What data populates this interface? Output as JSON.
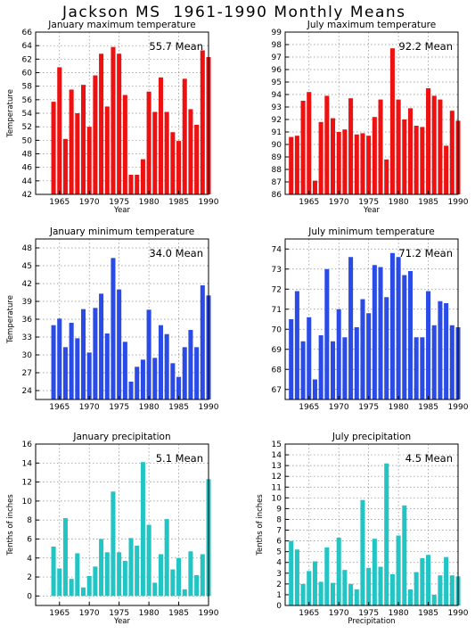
{
  "page": {
    "title": "Jackson MS  1961-1990 Monthly Means"
  },
  "chart_data": [
    {
      "type": "bar",
      "title": "January maximum temperature",
      "annotation": "55.7 Mean",
      "xlabel": "Year",
      "ylabel": "Temperature",
      "color": "#ee1111",
      "xlim": [
        1961,
        1990
      ],
      "ylim": [
        42,
        66
      ],
      "yticks": [
        42,
        44,
        46,
        48,
        50,
        52,
        54,
        56,
        58,
        60,
        62,
        64,
        66
      ],
      "xticks": [
        1965,
        1970,
        1975,
        1980,
        1985,
        1990
      ],
      "grid": true,
      "x": [
        1964,
        1965,
        1966,
        1967,
        1968,
        1969,
        1970,
        1971,
        1972,
        1973,
        1974,
        1975,
        1976,
        1977,
        1978,
        1979,
        1980,
        1981,
        1982,
        1983,
        1984,
        1985,
        1986,
        1987,
        1988,
        1989,
        1990
      ],
      "values": [
        55.7,
        60.8,
        50.2,
        57.5,
        54.0,
        58.2,
        52.0,
        59.6,
        62.8,
        55.0,
        63.8,
        62.8,
        56.7,
        44.9,
        44.9,
        47.2,
        57.2,
        54.2,
        59.3,
        54.2,
        51.2,
        49.9,
        59.1,
        54.6,
        52.3,
        63.3,
        62.3
      ]
    },
    {
      "type": "bar",
      "title": "July maximum temperature",
      "annotation": "92.2 Mean",
      "xlabel": "Year",
      "ylabel": "",
      "color": "#ee1111",
      "xlim": [
        1961,
        1990
      ],
      "ylim": [
        86,
        99
      ],
      "yticks": [
        86,
        87,
        88,
        89,
        90,
        91,
        92,
        93,
        94,
        95,
        96,
        97,
        98,
        99
      ],
      "xticks": [
        1965,
        1970,
        1975,
        1980,
        1985,
        1990
      ],
      "grid": true,
      "x": [
        1962,
        1963,
        1964,
        1965,
        1966,
        1967,
        1968,
        1969,
        1970,
        1971,
        1972,
        1973,
        1974,
        1975,
        1976,
        1977,
        1978,
        1979,
        1980,
        1981,
        1982,
        1983,
        1984,
        1985,
        1986,
        1987,
        1988,
        1989,
        1990
      ],
      "values": [
        90.6,
        90.7,
        93.5,
        94.2,
        87.1,
        91.8,
        93.9,
        92.1,
        91.0,
        91.2,
        93.7,
        90.8,
        90.9,
        90.7,
        92.2,
        93.6,
        88.8,
        97.7,
        93.6,
        92.0,
        92.9,
        91.5,
        91.4,
        94.5,
        93.9,
        93.6,
        89.9,
        92.7,
        91.9
      ]
    },
    {
      "type": "bar",
      "title": "January minimum temperature",
      "annotation": "34.0 Mean",
      "xlabel": "",
      "ylabel": "Temperature",
      "color": "#2b4be6",
      "xlim": [
        1961,
        1990
      ],
      "ylim": [
        22.5,
        49.5
      ],
      "yticks": [
        24,
        27,
        30,
        33,
        36,
        39,
        42,
        45,
        48
      ],
      "xticks": [
        1965,
        1970,
        1975,
        1980,
        1985,
        1990
      ],
      "grid": true,
      "x": [
        1964,
        1965,
        1966,
        1967,
        1968,
        1969,
        1970,
        1971,
        1972,
        1973,
        1974,
        1975,
        1976,
        1977,
        1978,
        1979,
        1980,
        1981,
        1982,
        1983,
        1984,
        1985,
        1986,
        1987,
        1988,
        1989,
        1990
      ],
      "values": [
        35.0,
        36.1,
        31.3,
        35.4,
        32.8,
        37.7,
        30.4,
        37.9,
        40.3,
        33.6,
        46.3,
        41.0,
        32.2,
        25.5,
        28.0,
        29.2,
        37.6,
        29.5,
        35.0,
        33.5,
        28.6,
        26.3,
        31.3,
        34.2,
        31.3,
        41.7,
        40.0
      ]
    },
    {
      "type": "bar",
      "title": "July minimum temperature",
      "annotation": "71.2 Mean",
      "xlabel": "",
      "ylabel": "",
      "color": "#2b4be6",
      "xlim": [
        1961,
        1990
      ],
      "ylim": [
        66.5,
        74.5
      ],
      "yticks": [
        67,
        68,
        69,
        70,
        71,
        72,
        73,
        74
      ],
      "xticks": [
        1965,
        1970,
        1975,
        1980,
        1985,
        1990
      ],
      "grid": true,
      "x": [
        1962,
        1963,
        1964,
        1965,
        1966,
        1967,
        1968,
        1969,
        1970,
        1971,
        1972,
        1973,
        1974,
        1975,
        1976,
        1977,
        1978,
        1979,
        1980,
        1981,
        1982,
        1983,
        1984,
        1985,
        1986,
        1987,
        1988,
        1989,
        1990
      ],
      "values": [
        70.5,
        71.9,
        69.4,
        70.6,
        67.5,
        69.7,
        73.0,
        69.4,
        71.0,
        69.6,
        73.6,
        70.1,
        71.5,
        70.8,
        73.2,
        73.1,
        71.6,
        73.8,
        73.6,
        72.7,
        72.9,
        69.6,
        69.6,
        71.9,
        70.2,
        71.4,
        71.3,
        70.2,
        70.1
      ]
    },
    {
      "type": "bar",
      "title": "January precipitation",
      "annotation": "5.1  Mean",
      "xlabel": "Year",
      "ylabel": "Tenths of inches",
      "color": "#22c4c4",
      "xlim": [
        1961,
        1990
      ],
      "ylim": [
        -1,
        16
      ],
      "yticks": [
        0,
        2,
        4,
        6,
        8,
        10,
        12,
        14,
        16
      ],
      "xticks": [
        1965,
        1970,
        1975,
        1980,
        1985,
        1990
      ],
      "grid": true,
      "x": [
        1964,
        1965,
        1966,
        1967,
        1968,
        1969,
        1970,
        1971,
        1972,
        1973,
        1974,
        1975,
        1976,
        1977,
        1978,
        1979,
        1980,
        1981,
        1982,
        1983,
        1984,
        1985,
        1986,
        1987,
        1988,
        1989,
        1990
      ],
      "values": [
        5.2,
        2.9,
        8.2,
        1.8,
        4.5,
        0.9,
        2.1,
        3.1,
        6.0,
        4.6,
        11.0,
        4.6,
        3.7,
        6.1,
        5.3,
        14.1,
        7.5,
        1.4,
        4.4,
        8.1,
        2.8,
        4.0,
        0.7,
        4.7,
        2.2,
        4.4,
        12.3
      ]
    },
    {
      "type": "bar",
      "title": "July precipitation",
      "annotation": "4.5  Mean",
      "xlabel": "Precipitation",
      "ylabel": "Tenths of inches",
      "color": "#22c4c4",
      "xlim": [
        1961,
        1990
      ],
      "ylim": [
        0,
        15
      ],
      "yticks": [
        0,
        1,
        2,
        3,
        4,
        5,
        6,
        7,
        8,
        9,
        10,
        11,
        12,
        13,
        14,
        15
      ],
      "xticks": [
        1965,
        1970,
        1975,
        1980,
        1985,
        1990
      ],
      "grid": true,
      "x": [
        1962,
        1963,
        1964,
        1965,
        1966,
        1967,
        1968,
        1969,
        1970,
        1971,
        1972,
        1973,
        1974,
        1975,
        1976,
        1977,
        1978,
        1979,
        1980,
        1981,
        1982,
        1983,
        1984,
        1985,
        1986,
        1987,
        1988,
        1989,
        1990
      ],
      "values": [
        6.0,
        5.2,
        2.0,
        3.2,
        4.1,
        2.2,
        5.4,
        2.1,
        6.3,
        3.3,
        2.0,
        1.5,
        9.8,
        3.5,
        6.2,
        3.6,
        13.2,
        2.9,
        6.5,
        9.3,
        1.5,
        3.1,
        4.4,
        4.7,
        1.0,
        2.8,
        4.5,
        2.8,
        2.7
      ]
    }
  ]
}
